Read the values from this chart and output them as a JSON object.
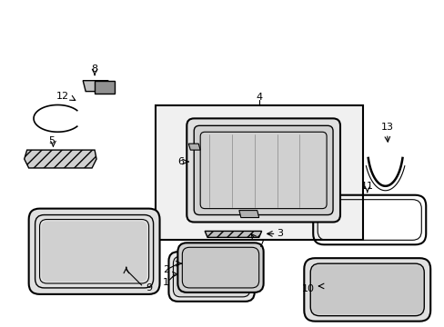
{
  "title": "",
  "background_color": "#ffffff",
  "line_color": "#000000",
  "part_numbers": [
    1,
    2,
    3,
    4,
    5,
    6,
    7,
    8,
    9,
    10,
    11,
    12,
    13
  ],
  "fig_width": 4.89,
  "fig_height": 3.6,
  "dpi": 100
}
